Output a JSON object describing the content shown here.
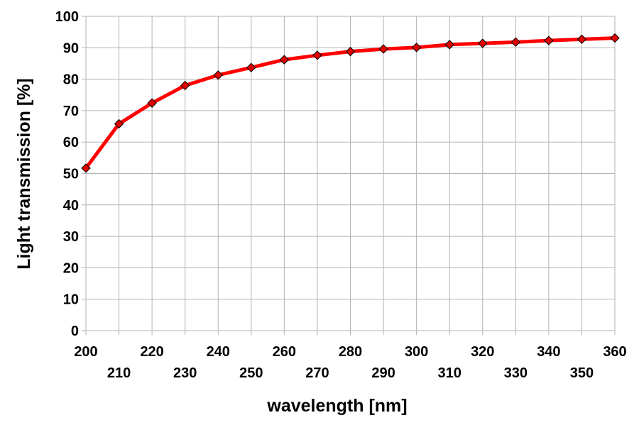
{
  "chart_data": {
    "type": "line",
    "title": "",
    "xlabel": "wavelength [nm]",
    "ylabel": "Light transmission  [%]",
    "xlim": [
      200,
      360
    ],
    "ylim": [
      0,
      100
    ],
    "x_ticks": [
      200,
      210,
      220,
      230,
      240,
      250,
      260,
      270,
      280,
      290,
      300,
      310,
      320,
      330,
      340,
      350,
      360
    ],
    "y_ticks": [
      0,
      10,
      20,
      30,
      40,
      50,
      60,
      70,
      80,
      90,
      100
    ],
    "grid": true,
    "legend": "none",
    "series": [
      {
        "color": "#ff0000",
        "marker": "diamond",
        "marker_color": "#e00000",
        "x": [
          200,
          210,
          220,
          230,
          240,
          250,
          260,
          270,
          280,
          290,
          300,
          310,
          320,
          330,
          340,
          350,
          360
        ],
        "y": [
          51.7,
          65.8,
          72.4,
          78.0,
          81.3,
          83.7,
          86.2,
          87.6,
          88.8,
          89.6,
          90.1,
          91.0,
          91.4,
          91.8,
          92.3,
          92.7,
          93.1
        ]
      }
    ]
  }
}
